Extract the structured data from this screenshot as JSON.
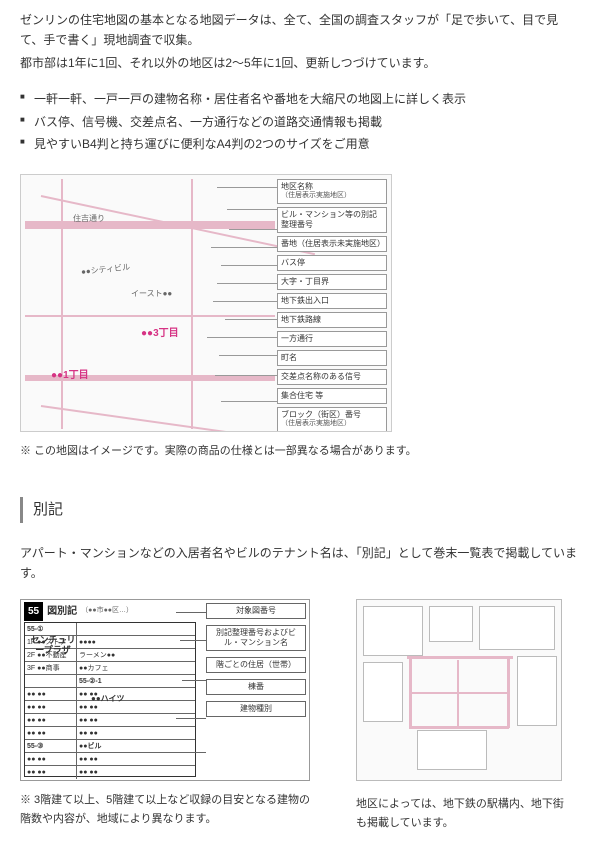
{
  "intro": {
    "p1": "ゼンリンの住宅地図の基本となる地図データは、全て、全国の調査スタッフが「足で歩いて、目で見て、手で書く」現地調査で収集。",
    "p2": "都市部は1年に1回、それ以外の地区は2〜5年に1回、更新しつづけています。"
  },
  "features": [
    "一軒一軒、一戸一戸の建物名称・居住者名や番地を大縮尺の地図上に詳しく表示",
    "バス停、信号機、交差点名、一方通行などの道路交通情報も掲載",
    "見やすいB4判と持ち運びに便利なA4判の2つのサイズをご用意"
  ],
  "map": {
    "street_label": "住吉通り",
    "bldg1": "●●シティビル",
    "bldg2": "イースト●●",
    "chome_a": "●●3丁目",
    "chome_b": "●●1丁目",
    "legend": [
      {
        "t": "地区名称",
        "s": "（住居表示実施地区）"
      },
      {
        "t": "ビル・マンション等の別記整理番号",
        "s": ""
      },
      {
        "t": "番地（住居表示未実施地区）",
        "s": ""
      },
      {
        "t": "バス停",
        "s": ""
      },
      {
        "t": "大字・丁目界",
        "s": ""
      },
      {
        "t": "地下鉄出入口",
        "s": ""
      },
      {
        "t": "地下鉄路線",
        "s": ""
      },
      {
        "t": "一方通行",
        "s": ""
      },
      {
        "t": "町名",
        "s": ""
      },
      {
        "t": "交差点名称のある信号",
        "s": ""
      },
      {
        "t": "集合住宅 等",
        "s": ""
      },
      {
        "t": "ブロック（街区）番号",
        "s": "（住居表示実施地区）"
      }
    ],
    "caption": "※ この地図はイメージです。実際の商品の仕様とは一部異なる場合があります。"
  },
  "section_title": "別記",
  "bekki_intro": "アパート・マンションなどの入居者名やビルのテナント名は、「別記」として巻末一覧表で掲載しています。",
  "bekki": {
    "badge": "55",
    "title": "図別記",
    "main_name": "センチュリープラザ",
    "rows": [
      {
        "a": "55-①",
        "b": ""
      },
      {
        "a": "1F ●●ストア",
        "b": "●●●●"
      },
      {
        "a": "2F ●●不動産",
        "b": "ラーメン●●"
      },
      {
        "a": "3F ●●商事",
        "b": "●●カフェ"
      },
      {
        "a": "",
        "b": "55-②-1"
      },
      {
        "a": "●● ●●",
        "b": "●● ●●"
      },
      {
        "a": "●● ●●",
        "b": "●● ●●"
      },
      {
        "a": "●● ●●",
        "b": "●● ●●"
      },
      {
        "a": "●● ●●",
        "b": "●● ●●"
      },
      {
        "a": "55-③",
        "b": "●●ビル"
      },
      {
        "a": "●● ●●",
        "b": "●● ●●"
      },
      {
        "a": "●● ●●",
        "b": "●● ●●"
      }
    ],
    "row_bold": [
      0,
      4,
      9
    ],
    "sub_name": "●●ハイツ",
    "callouts": [
      "対象図番号",
      "別記整理番号およびビル・マンション名",
      "階ごとの住居（世帯）",
      "棟番",
      "建物種別"
    ],
    "caption": "※ 3階建て以上、5階建て以上など収録の目安となる建物の階数や内容が、地域により異なります。"
  },
  "metro_caption": "地区によっては、地下鉄の駅構内、地下街も掲載しています。",
  "colors": {
    "pink": "#d63384",
    "map_line": "#e6b8c8",
    "border": "#999999",
    "text": "#333333"
  }
}
